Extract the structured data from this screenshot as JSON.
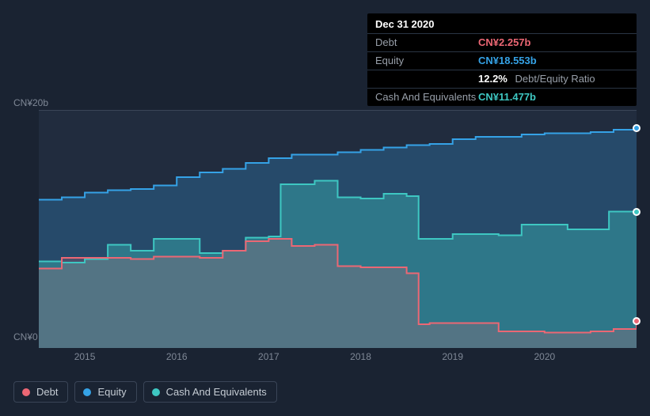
{
  "tooltip": {
    "date": "Dec 31 2020",
    "rows": {
      "debt": {
        "label": "Debt",
        "value": "CN¥2.257b"
      },
      "equity": {
        "label": "Equity",
        "value": "CN¥18.553b"
      },
      "ratio": {
        "label": "",
        "value": "12.2%",
        "suffix": "Debt/Equity Ratio"
      },
      "cash": {
        "label": "Cash And Equivalents",
        "value": "CN¥11.477b"
      }
    }
  },
  "chart": {
    "type": "area",
    "background_color": "#212c3e",
    "page_background": "#1a2332",
    "y_axis": {
      "min": 0,
      "max": 20,
      "top_label": "CN¥20b",
      "bottom_label": "CN¥0",
      "label_color": "#7f8896",
      "label_fontsize": 12
    },
    "x_axis": {
      "start_year": 2014.5,
      "end_year": 2021.0,
      "tick_years": [
        2015,
        2016,
        2017,
        2018,
        2019,
        2020
      ],
      "label_color": "#7f8896",
      "label_fontsize": 12
    },
    "axis_line_color": "#3a4557",
    "series": {
      "equity": {
        "label": "Equity",
        "color": "#35a2e6",
        "fill_color": "rgba(53,162,230,0.26)",
        "line_width": 2,
        "data": [
          [
            2014.5,
            12.5
          ],
          [
            2014.75,
            12.7
          ],
          [
            2015.0,
            13.1
          ],
          [
            2015.25,
            13.3
          ],
          [
            2015.5,
            13.4
          ],
          [
            2015.75,
            13.7
          ],
          [
            2016.0,
            14.4
          ],
          [
            2016.25,
            14.8
          ],
          [
            2016.5,
            15.1
          ],
          [
            2016.75,
            15.6
          ],
          [
            2017.0,
            16.0
          ],
          [
            2017.25,
            16.3
          ],
          [
            2017.5,
            16.3
          ],
          [
            2017.75,
            16.5
          ],
          [
            2018.0,
            16.7
          ],
          [
            2018.25,
            16.9
          ],
          [
            2018.5,
            17.1
          ],
          [
            2018.75,
            17.2
          ],
          [
            2019.0,
            17.6
          ],
          [
            2019.25,
            17.8
          ],
          [
            2019.5,
            17.8
          ],
          [
            2019.75,
            18.0
          ],
          [
            2020.0,
            18.1
          ],
          [
            2020.25,
            18.1
          ],
          [
            2020.5,
            18.2
          ],
          [
            2020.75,
            18.4
          ],
          [
            2021.0,
            18.55
          ]
        ]
      },
      "cash": {
        "label": "Cash And Equivalents",
        "color": "#3ec7c2",
        "fill_color": "rgba(62,199,194,0.36)",
        "line_width": 2,
        "data": [
          [
            2014.5,
            7.3
          ],
          [
            2014.75,
            7.2
          ],
          [
            2015.0,
            7.5
          ],
          [
            2015.25,
            8.7
          ],
          [
            2015.5,
            8.2
          ],
          [
            2015.75,
            9.2
          ],
          [
            2016.0,
            9.2
          ],
          [
            2016.25,
            8.0
          ],
          [
            2016.5,
            8.2
          ],
          [
            2016.75,
            9.3
          ],
          [
            2017.0,
            9.4
          ],
          [
            2017.13,
            13.8
          ],
          [
            2017.25,
            13.8
          ],
          [
            2017.5,
            14.1
          ],
          [
            2017.75,
            12.7
          ],
          [
            2018.0,
            12.6
          ],
          [
            2018.25,
            13.0
          ],
          [
            2018.5,
            12.8
          ],
          [
            2018.63,
            9.2
          ],
          [
            2018.75,
            9.2
          ],
          [
            2019.0,
            9.6
          ],
          [
            2019.25,
            9.6
          ],
          [
            2019.5,
            9.5
          ],
          [
            2019.75,
            10.4
          ],
          [
            2020.0,
            10.4
          ],
          [
            2020.25,
            10.0
          ],
          [
            2020.5,
            10.0
          ],
          [
            2020.7,
            11.5
          ],
          [
            2020.75,
            11.5
          ],
          [
            2021.0,
            11.48
          ]
        ]
      },
      "debt": {
        "label": "Debt",
        "color": "#ec6774",
        "fill_color": "rgba(236,103,116,0.20)",
        "line_width": 2,
        "data": [
          [
            2014.5,
            6.7
          ],
          [
            2014.75,
            7.6
          ],
          [
            2015.0,
            7.6
          ],
          [
            2015.25,
            7.6
          ],
          [
            2015.5,
            7.5
          ],
          [
            2015.75,
            7.7
          ],
          [
            2016.0,
            7.7
          ],
          [
            2016.25,
            7.6
          ],
          [
            2016.5,
            8.2
          ],
          [
            2016.75,
            9.0
          ],
          [
            2017.0,
            9.2
          ],
          [
            2017.25,
            8.6
          ],
          [
            2017.5,
            8.7
          ],
          [
            2017.75,
            6.9
          ],
          [
            2018.0,
            6.8
          ],
          [
            2018.25,
            6.8
          ],
          [
            2018.5,
            6.3
          ],
          [
            2018.63,
            2.0
          ],
          [
            2018.75,
            2.1
          ],
          [
            2019.0,
            2.1
          ],
          [
            2019.25,
            2.1
          ],
          [
            2019.5,
            1.4
          ],
          [
            2019.75,
            1.4
          ],
          [
            2020.0,
            1.3
          ],
          [
            2020.25,
            1.3
          ],
          [
            2020.5,
            1.4
          ],
          [
            2020.75,
            1.6
          ],
          [
            2021.0,
            2.26
          ]
        ]
      }
    },
    "legend_order": [
      "debt",
      "equity",
      "cash"
    ],
    "end_dots": {
      "equity_y": 18.55,
      "cash_y": 11.48,
      "debt_y": 2.26
    }
  },
  "legend": {
    "items": {
      "debt": {
        "label": "Debt",
        "color": "#ec6774"
      },
      "equity": {
        "label": "Equity",
        "color": "#35a2e6"
      },
      "cash": {
        "label": "Cash And Equivalents",
        "color": "#3ec7c2"
      }
    },
    "border_color": "#3a4557",
    "text_color": "#c5ccd4"
  }
}
